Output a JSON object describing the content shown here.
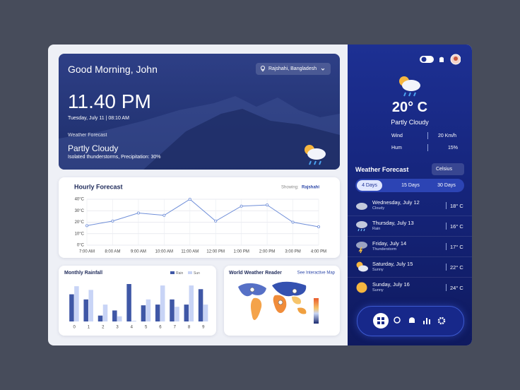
{
  "header": {
    "greeting": "Good Morning, John",
    "location": "Rajshahi, Bangladesh",
    "time": "11.40 PM",
    "date": "Tuesday, July 11 | 08:10 AM",
    "forecast_label": "Weather Forecast",
    "condition": "Partly Cloudy",
    "details": "Isolated thunderstorms, Precipitation: 30%"
  },
  "current": {
    "temp": "20° C",
    "condition": "Partly Cloudy",
    "wind_label": "Wind",
    "wind": "20 Km/h",
    "hum_label": "Hum",
    "hum": "15%"
  },
  "forecast": {
    "title": "Weather Forecast",
    "unit": "Celsius",
    "tabs": [
      "4 Days",
      "15 Days",
      "30 Days"
    ],
    "days": [
      {
        "date": "Wednesday, July 12",
        "desc": "Cloudy",
        "temp": "18° C",
        "icon": "cloud"
      },
      {
        "date": "Thursday, July 13",
        "desc": "Rain",
        "temp": "16° C",
        "icon": "rain"
      },
      {
        "date": "Friday, July 14",
        "desc": "Thunderstorm",
        "temp": "17° C",
        "icon": "storm"
      },
      {
        "date": "Saturday, July 15",
        "desc": "Sunny",
        "temp": "22° C",
        "icon": "partly"
      },
      {
        "date": "Sunday, July 16",
        "desc": "Sunny",
        "temp": "24° C",
        "icon": "sun"
      }
    ]
  },
  "map": {
    "title": "World Weather Reader",
    "link": "See Interactive Map"
  },
  "chart_data": [
    {
      "type": "line",
      "title": "Hourly Forecast",
      "showing_label": "Showing:",
      "location": "Rajshahi",
      "categories": [
        "7:00 AM",
        "8:00 AM",
        "9:00 AM",
        "10:00 AM",
        "11:00 AM",
        "12:00 PM",
        "1:00 PM",
        "2:00 PM",
        "3:00 PM",
        "4:00 PM"
      ],
      "values": [
        17,
        21,
        28,
        26,
        40,
        21,
        34,
        35,
        20,
        16
      ],
      "color": "#6f8ed8",
      "ylim": [
        0,
        40
      ],
      "yticks": [
        {
          "value": 0,
          "label": "0°C"
        },
        {
          "value": 10,
          "label": "10°C"
        },
        {
          "value": 20,
          "label": "20°C"
        },
        {
          "value": 30,
          "label": "30°C"
        },
        {
          "value": 40,
          "label": "40°C"
        }
      ],
      "grid": true
    },
    {
      "type": "bar",
      "title": "Monthly Rainfall",
      "categories": [
        "0",
        "1",
        "2",
        "3",
        "4",
        "5",
        "6",
        "7",
        "8",
        "9"
      ],
      "series": [
        {
          "name": "Rain",
          "color": "#3f57a6",
          "values": [
            37,
            30,
            8,
            15,
            51,
            22,
            23,
            30,
            23,
            44
          ]
        },
        {
          "name": "Sun",
          "color": "#c8d4f6",
          "values": [
            48,
            43,
            23,
            7,
            1,
            30,
            49,
            20,
            49,
            23
          ]
        }
      ]
    }
  ]
}
